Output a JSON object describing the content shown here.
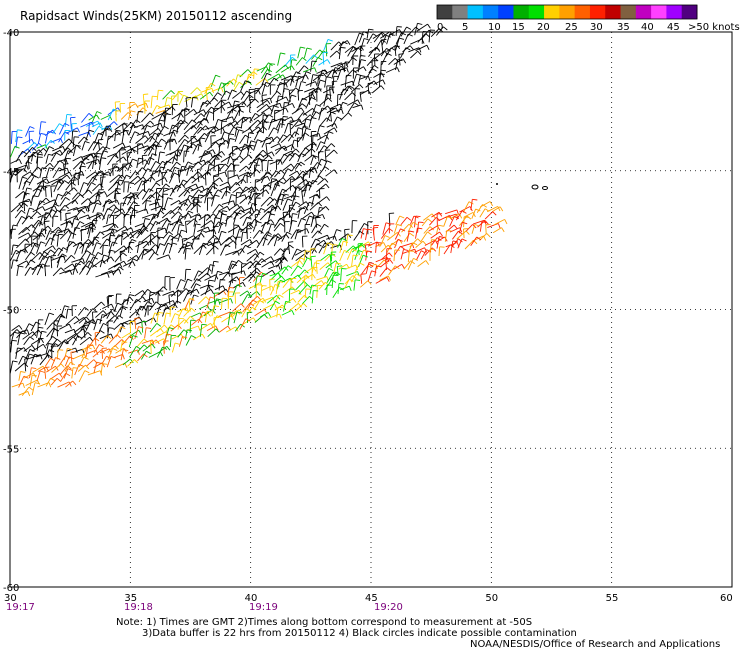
{
  "title": "Rapidsact Winds(25KM) 20150112 ascending",
  "legend": {
    "colors": [
      "#404040",
      "#808080",
      "#00c0ff",
      "#0080ff",
      "#0040ff",
      "#00b000",
      "#00e000",
      "#ffd000",
      "#ffa000",
      "#ff6000",
      "#ff2000",
      "#c00000",
      "#806040",
      "#c000c0",
      "#ff40ff",
      "#a000ff",
      "#500080"
    ],
    "labels": [
      "0",
      "5",
      "10",
      "15",
      "20",
      "25",
      "30",
      "35",
      "40",
      "45",
      ">50 knots"
    ]
  },
  "axes": {
    "lon_labels": [
      "30",
      "35",
      "40",
      "45",
      "50",
      "55",
      "60"
    ],
    "lat_labels": [
      "-40",
      "-45",
      "-50",
      "-55",
      "-60"
    ],
    "time_labels": [
      "19:17",
      "19:18",
      "19:19",
      "19:20"
    ]
  },
  "notes": {
    "line1": "Note: 1) Times are GMT 2)Times along bottom correspond to measurement at -50S",
    "line2": "3)Data buffer is 22 hrs from 20150112 4) Black circles indicate possible contamination",
    "credit": "NOAA/NESDIS/Office of Research and Applications"
  },
  "colors": {
    "grid": "#000000",
    "time_text": "#7b007b",
    "barb_default": "#000000"
  }
}
